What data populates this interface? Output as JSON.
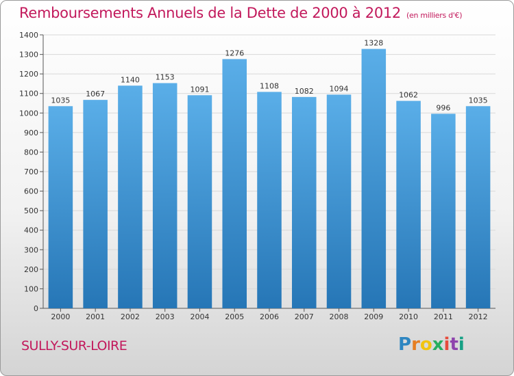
{
  "title": "Remboursements Annuels de la Dette de 2000 à 2012",
  "unit_note": "(en milliers d'€)",
  "place": "SULLY-SUR-LOIRE",
  "logo_text": "Proxiti",
  "colors": {
    "title": "#c2185b",
    "bar_top": "#5aaee8",
    "bar_bottom": "#2676b6",
    "grid": "#d8d8d8"
  },
  "chart_data": {
    "type": "bar",
    "title": "Remboursements Annuels de la Dette de 2000 à 2012",
    "categories": [
      "2000",
      "2001",
      "2002",
      "2003",
      "2004",
      "2005",
      "2006",
      "2007",
      "2008",
      "2009",
      "2010",
      "2011",
      "2012"
    ],
    "values": [
      1035,
      1067,
      1140,
      1153,
      1091,
      1276,
      1108,
      1082,
      1094,
      1328,
      1062,
      996,
      1035
    ],
    "ylim": [
      0,
      1400
    ],
    "yticks": [
      0,
      100,
      200,
      300,
      400,
      500,
      600,
      700,
      800,
      900,
      1000,
      1100,
      1200,
      1300,
      1400
    ],
    "grid": true,
    "xlabel": "",
    "ylabel": ""
  }
}
